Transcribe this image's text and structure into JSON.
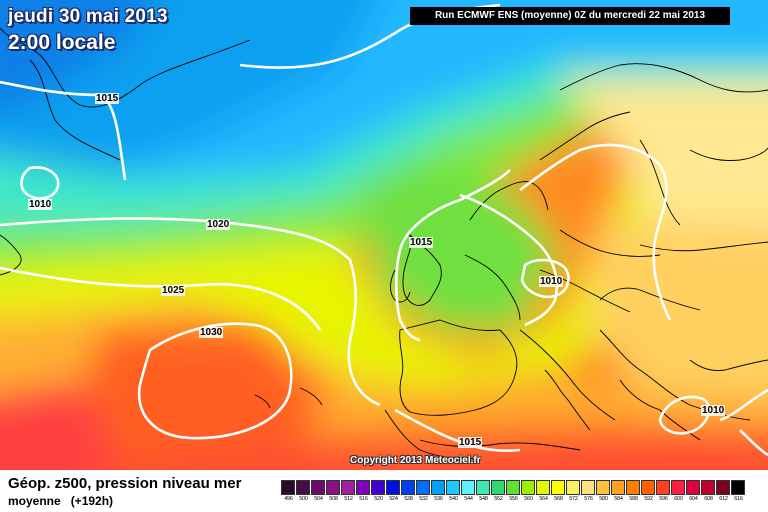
{
  "header": {
    "date": "jeudi 30 mai 2013",
    "time": "2:00 locale",
    "run": "Run ECMWF ENS (moyenne) 0Z du mercredi 22 mai 2013"
  },
  "copyright": "Copyright 2013 Meteociel.fr",
  "isobars": [
    {
      "name": "isobar-1015-north",
      "label": "1015"
    },
    {
      "name": "isobar-1010-north",
      "label": "1010"
    },
    {
      "name": "isobar-1020",
      "label": "1020"
    },
    {
      "name": "isobar-1025",
      "label": "1025"
    },
    {
      "name": "isobar-1030",
      "label": "1030"
    },
    {
      "name": "isobar-1015-france",
      "label": "1015"
    },
    {
      "name": "isobar-1010-central",
      "label": "1010"
    },
    {
      "name": "isobar-1010-east",
      "label": "1010"
    },
    {
      "name": "isobar-1015-south",
      "label": "1015"
    }
  ],
  "legend": {
    "title": "Géop. z500, pression niveau mer",
    "subtitle": "moyenne",
    "forecast": "(+192h)",
    "scale": [
      {
        "value": "496",
        "color": "#2a0a2a"
      },
      {
        "value": "500",
        "color": "#4a0a4a"
      },
      {
        "value": "504",
        "color": "#6a0a6a"
      },
      {
        "value": "508",
        "color": "#8a108a"
      },
      {
        "value": "512",
        "color": "#a020a0"
      },
      {
        "value": "516",
        "color": "#8000c0"
      },
      {
        "value": "520",
        "color": "#4000d0"
      },
      {
        "value": "524",
        "color": "#0010e0"
      },
      {
        "value": "528",
        "color": "#0040f0"
      },
      {
        "value": "532",
        "color": "#0070f8"
      },
      {
        "value": "536",
        "color": "#00a0ff"
      },
      {
        "value": "540",
        "color": "#20c8ff"
      },
      {
        "value": "544",
        "color": "#60f0ff"
      },
      {
        "value": "548",
        "color": "#40e8b0"
      },
      {
        "value": "552",
        "color": "#30d870"
      },
      {
        "value": "556",
        "color": "#60e030"
      },
      {
        "value": "560",
        "color": "#a0f000"
      },
      {
        "value": "564",
        "color": "#e0f800"
      },
      {
        "value": "568",
        "color": "#ffff00"
      },
      {
        "value": "572",
        "color": "#fff060"
      },
      {
        "value": "576",
        "color": "#ffe080"
      },
      {
        "value": "580",
        "color": "#ffc040"
      },
      {
        "value": "584",
        "color": "#ffa020"
      },
      {
        "value": "588",
        "color": "#ff8000"
      },
      {
        "value": "592",
        "color": "#ff6000"
      },
      {
        "value": "596",
        "color": "#ff4020"
      },
      {
        "value": "600",
        "color": "#ff2040"
      },
      {
        "value": "604",
        "color": "#e00040"
      },
      {
        "value": "608",
        "color": "#c00030"
      },
      {
        "value": "612",
        "color": "#800020"
      },
      {
        "value": "616",
        "color": "#000000"
      }
    ]
  }
}
